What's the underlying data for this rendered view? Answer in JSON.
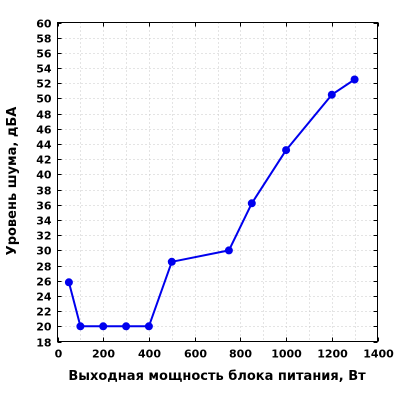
{
  "chart_data": {
    "type": "line",
    "title": "",
    "xlabel": "Выходная мощность блока питания, Вт",
    "ylabel": "Уровень шума, дБА",
    "xlim": [
      0,
      1400
    ],
    "ylim": [
      18,
      60
    ],
    "x_ticks": [
      0,
      200,
      400,
      600,
      800,
      1000,
      1200,
      1400
    ],
    "y_ticks": [
      18,
      20,
      22,
      24,
      26,
      28,
      30,
      32,
      34,
      36,
      38,
      40,
      42,
      44,
      46,
      48,
      50,
      52,
      54,
      56,
      58,
      60
    ],
    "x_minor_grid": [
      100,
      300,
      500,
      700,
      900,
      1100,
      1300
    ],
    "grid": true,
    "legend": "none",
    "series": [
      {
        "color": "#0000ee",
        "points": [
          {
            "x": 50,
            "y": 25.8
          },
          {
            "x": 100,
            "y": 20
          },
          {
            "x": 200,
            "y": 20
          },
          {
            "x": 300,
            "y": 20
          },
          {
            "x": 400,
            "y": 20
          },
          {
            "x": 500,
            "y": 28.5
          },
          {
            "x": 750,
            "y": 30
          },
          {
            "x": 850,
            "y": 36.2
          },
          {
            "x": 1000,
            "y": 43.2
          },
          {
            "x": 1200,
            "y": 50.5
          },
          {
            "x": 1300,
            "y": 52.5
          }
        ]
      }
    ]
  }
}
